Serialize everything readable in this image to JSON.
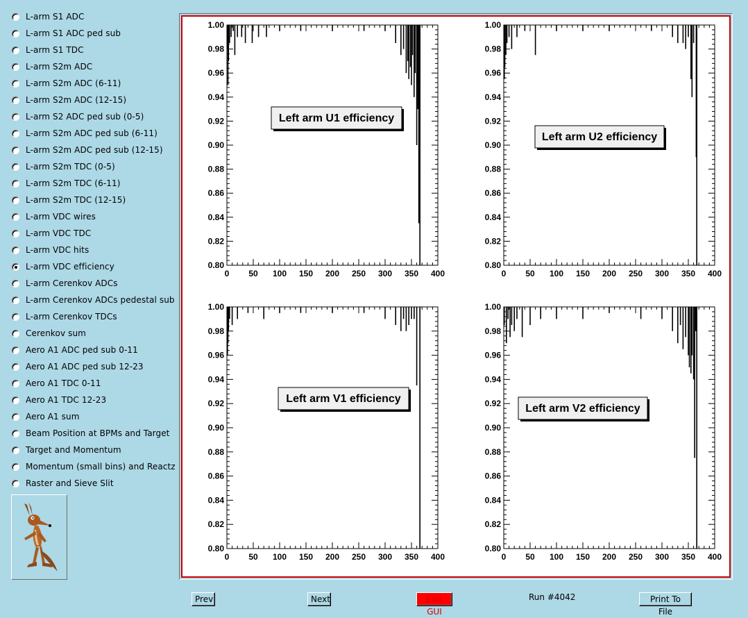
{
  "sidebar": {
    "selected_index": 15,
    "items": [
      "L-arm S1 ADC",
      "L-arm S1 ADC ped sub",
      "L-arm S1 TDC",
      "L-arm S2m ADC",
      "L-arm S2m ADC (6-11)",
      "L-arm S2m ADC (12-15)",
      "L-arm S2 ADC ped sub (0-5)",
      "L-arm S2m ADC ped sub (6-11)",
      "L-arm S2m ADC ped sub (12-15)",
      "L-arm S2m TDC (0-5)",
      "L-arm S2m TDC (6-11)",
      "L-arm S2m TDC (12-15)",
      "L-arm VDC wires",
      "L-arm VDC TDC",
      "L-arm VDC hits",
      "L-arm VDC efficiency",
      "L-arm Cerenkov ADCs",
      "L-arm Cerenkov ADCs pedestal sub",
      "L-arm Cerenkov TDCs",
      "Cerenkov sum",
      "Aero A1 ADC ped sub 0-11",
      "Aero A1 ADC ped sub 12-23",
      "Aero A1 TDC 0-11",
      "Aero A1 TDC 12-23",
      "Aero A1 sum",
      "Beam Position at BPMs and Target",
      "Target and Momentum",
      "Momentum (small bins) and Reactz",
      "Raster and Sieve Slit"
    ],
    "logo_icon": "wile-e-coyote-logo-icon"
  },
  "footer": {
    "prev_label": "Prev",
    "next_label": "Next",
    "exit_label": "Exit GUI",
    "run_label": "Run #4042",
    "print_label": "Print To File",
    "exit_color": "#ff0000"
  },
  "colors": {
    "background": "#add8e6",
    "canvas_border": "#cc0000",
    "histogram": "#000000"
  },
  "chart_data": [
    {
      "type": "bar",
      "title": "Left arm U1 efficiency",
      "xlim": [
        0,
        400
      ],
      "ylim": [
        0.8,
        1.0
      ],
      "xticks": [
        0,
        50,
        100,
        150,
        200,
        250,
        300,
        350,
        400
      ],
      "yticks": [
        0.8,
        0.82,
        0.84,
        0.86,
        0.88,
        0.9,
        0.92,
        0.94,
        0.96,
        0.98,
        1.0
      ],
      "x": [
        1,
        2,
        3,
        5,
        8,
        12,
        15,
        20,
        28,
        35,
        48,
        60,
        75,
        100,
        140,
        200,
        260,
        300,
        320,
        330,
        335,
        340,
        343,
        345,
        348,
        350,
        352,
        355,
        357,
        360,
        361,
        362,
        364,
        366,
        368
      ],
      "values": [
        0.98,
        0.95,
        0.97,
        0.985,
        0.99,
        0.995,
        0.975,
        0.99,
        0.99,
        0.985,
        0.985,
        0.99,
        0.99,
        0.995,
        0.995,
        0.995,
        0.995,
        0.995,
        0.985,
        0.975,
        0.98,
        0.96,
        0.97,
        0.955,
        0.965,
        0.95,
        0.975,
        0.94,
        0.96,
        0.9,
        0.95,
        0.93,
        0.835,
        0.8,
        1.0
      ]
    },
    {
      "type": "bar",
      "title": "Left arm U2 efficiency",
      "xlim": [
        0,
        400
      ],
      "ylim": [
        0.8,
        1.0
      ],
      "xticks": [
        0,
        50,
        100,
        150,
        200,
        250,
        300,
        350,
        400
      ],
      "yticks": [
        0.8,
        0.82,
        0.84,
        0.86,
        0.88,
        0.9,
        0.92,
        0.94,
        0.96,
        0.98,
        1.0
      ],
      "x": [
        1,
        2,
        4,
        6,
        10,
        15,
        25,
        40,
        60,
        100,
        150,
        200,
        280,
        320,
        330,
        340,
        345,
        350,
        355,
        357,
        360,
        365,
        366
      ],
      "values": [
        0.955,
        0.965,
        0.975,
        0.985,
        0.99,
        0.98,
        0.99,
        0.995,
        0.975,
        0.995,
        0.995,
        0.995,
        0.995,
        0.99,
        0.985,
        0.985,
        0.98,
        0.99,
        0.955,
        0.94,
        0.985,
        0.89,
        0.8
      ]
    },
    {
      "type": "bar",
      "title": "Left arm V1 efficiency",
      "xlim": [
        0,
        400
      ],
      "ylim": [
        0.8,
        1.0
      ],
      "xticks": [
        0,
        50,
        100,
        150,
        200,
        250,
        300,
        350,
        400
      ],
      "yticks": [
        0.8,
        0.82,
        0.84,
        0.86,
        0.88,
        0.9,
        0.92,
        0.94,
        0.96,
        0.98,
        1.0
      ],
      "x": [
        1,
        2,
        3,
        5,
        10,
        20,
        40,
        70,
        100,
        140,
        200,
        260,
        300,
        320,
        330,
        335,
        340,
        345,
        350,
        355,
        360,
        365,
        366
      ],
      "values": [
        0.96,
        0.97,
        0.98,
        0.99,
        0.985,
        0.99,
        0.995,
        0.99,
        0.995,
        0.995,
        0.995,
        0.995,
        0.99,
        0.985,
        0.98,
        0.99,
        0.98,
        0.985,
        0.99,
        0.99,
        0.935,
        1.0,
        0.8
      ]
    },
    {
      "type": "bar",
      "title": "Left arm V2 efficiency",
      "xlim": [
        0,
        400
      ],
      "ylim": [
        0.8,
        1.0
      ],
      "xticks": [
        0,
        50,
        100,
        150,
        200,
        250,
        300,
        350,
        400
      ],
      "yticks": [
        0.8,
        0.82,
        0.84,
        0.86,
        0.88,
        0.9,
        0.92,
        0.94,
        0.96,
        0.98,
        1.0
      ],
      "x": [
        1,
        5,
        8,
        12,
        15,
        20,
        25,
        35,
        50,
        70,
        100,
        150,
        200,
        260,
        300,
        320,
        330,
        335,
        340,
        345,
        350,
        352,
        355,
        357,
        360,
        362,
        364,
        366
      ],
      "values": [
        0.985,
        0.97,
        0.99,
        0.975,
        0.985,
        0.98,
        0.99,
        0.975,
        0.985,
        0.99,
        0.99,
        0.99,
        0.995,
        0.99,
        0.99,
        0.98,
        0.97,
        0.985,
        0.965,
        0.975,
        0.96,
        0.95,
        0.945,
        0.96,
        0.94,
        0.875,
        0.98,
        0.8
      ]
    }
  ]
}
